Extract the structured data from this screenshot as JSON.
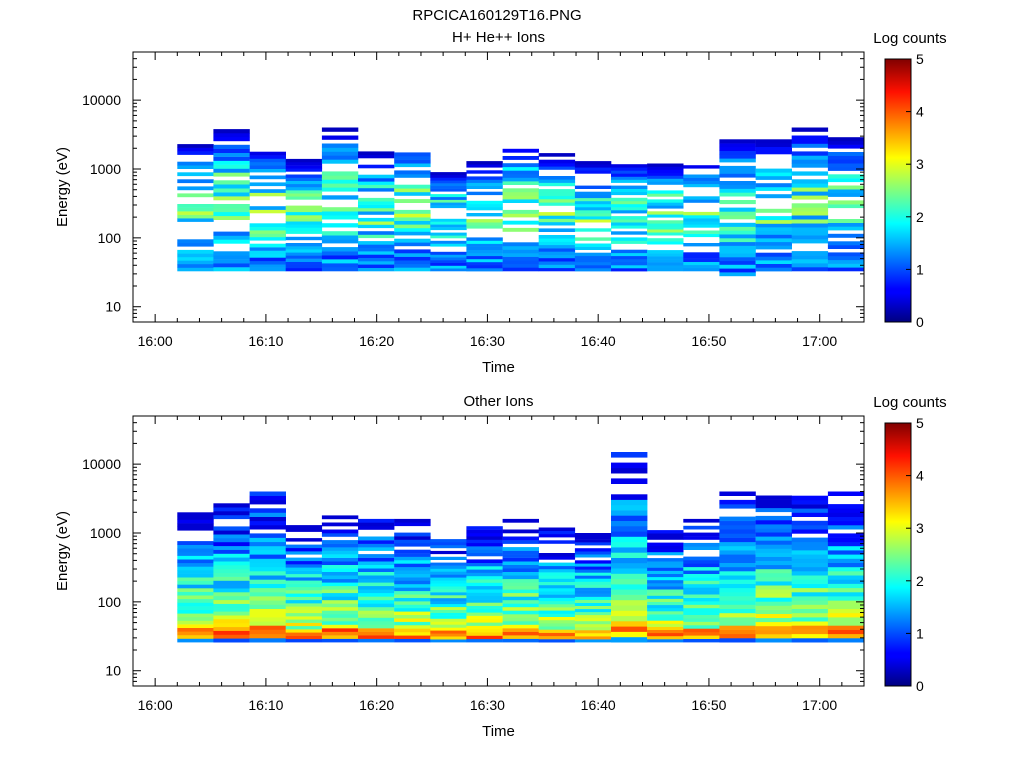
{
  "file_title": "RPCICA160129T16.PNG",
  "chart_data": [
    {
      "type": "heatmap",
      "title": "H+ He++ Ions",
      "xlabel": "Time",
      "ylabel": "Energy (eV)",
      "x_ticks": [
        "16:00",
        "16:10",
        "16:20",
        "16:30",
        "16:40",
        "16:50",
        "17:00"
      ],
      "y_scale": "log",
      "y_ticks": [
        "10",
        "100",
        "1000",
        "10000"
      ],
      "ylim": [
        6,
        50000
      ],
      "colorbar": {
        "label": "Log counts",
        "range": [
          0,
          5
        ],
        "ticks": [
          "0",
          "1",
          "2",
          "3",
          "4",
          "5"
        ]
      },
      "style": "sparse",
      "top_energy": [
        2300,
        3800,
        2000,
        1400,
        4000,
        1800,
        2500,
        900,
        1300,
        2500,
        1700,
        1300,
        1300,
        1200,
        1400,
        2700,
        2700,
        4000,
        2900
      ],
      "bottom_energy": [
        33,
        33,
        33,
        33,
        33,
        33,
        33,
        33,
        33,
        33,
        33,
        33,
        33,
        33,
        33,
        28,
        33,
        33,
        33
      ]
    },
    {
      "type": "heatmap",
      "title": "Other Ions",
      "xlabel": "Time",
      "ylabel": "Energy (eV)",
      "x_ticks": [
        "16:00",
        "16:10",
        "16:20",
        "16:30",
        "16:40",
        "16:50",
        "17:00"
      ],
      "y_scale": "log",
      "y_ticks": [
        "10",
        "100",
        "1000",
        "10000"
      ],
      "ylim": [
        6,
        50000
      ],
      "colorbar": {
        "label": "Log counts",
        "range": [
          0,
          5
        ],
        "ticks": [
          "0",
          "1",
          "2",
          "3",
          "4",
          "5"
        ]
      },
      "style": "dense",
      "top_energy": [
        2000,
        2700,
        4000,
        1300,
        1800,
        1800,
        1600,
        900,
        1400,
        1800,
        1200,
        1000,
        15000,
        1100,
        1600,
        4000,
        3500,
        4000,
        4000
      ],
      "bottom_energy": [
        26,
        26,
        26,
        26,
        26,
        26,
        26,
        26,
        26,
        26,
        26,
        26,
        26,
        26,
        26,
        26,
        26,
        26,
        26
      ]
    }
  ]
}
